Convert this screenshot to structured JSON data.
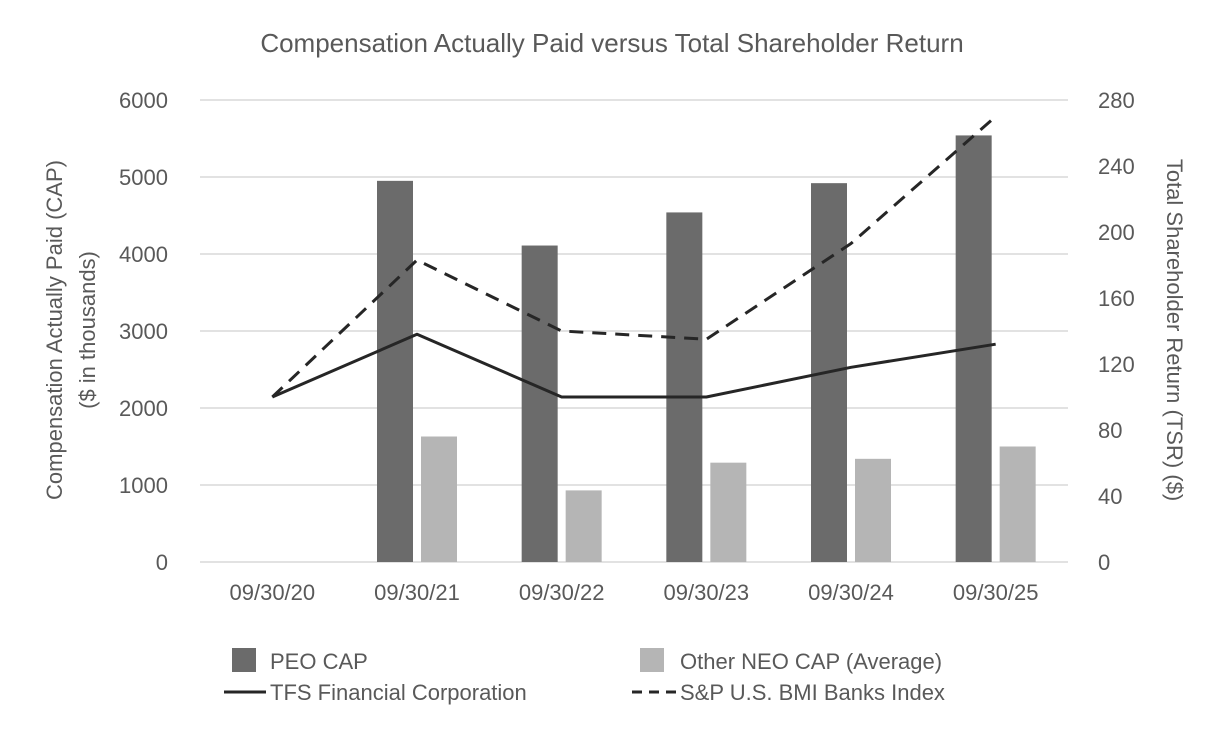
{
  "chart_data": {
    "type": "bar",
    "title": "Compensation Actually Paid versus Total Shareholder Return",
    "ylabel_left": [
      "Compensation Actually Paid (CAP)",
      "($ in thousands)"
    ],
    "ylabel_right": "Total Shareholder Return (TSR) ($)",
    "categories": [
      "09/30/20",
      "09/30/21",
      "09/30/22",
      "09/30/23",
      "09/30/24",
      "09/30/25"
    ],
    "ylim_left": [
      0,
      6000
    ],
    "yticks_left": [
      "0",
      "1000",
      "2000",
      "3000",
      "4000",
      "5000",
      "6000"
    ],
    "ylim_right": [
      0,
      280
    ],
    "yticks_right": [
      "0",
      "40",
      "80",
      "120",
      "160",
      "200",
      "240",
      "280"
    ],
    "grid": true,
    "legend_position": "bottom",
    "bar_series": [
      {
        "name": "PEO CAP",
        "axis": "left",
        "color": "#6b6b6b",
        "values": [
          null,
          4950,
          4110,
          4540,
          4920,
          5540
        ]
      },
      {
        "name": "Other NEO CAP (Average)",
        "axis": "left",
        "color": "#b5b5b5",
        "values": [
          null,
          1630,
          930,
          1290,
          1340,
          1500
        ]
      }
    ],
    "line_series": [
      {
        "name": "TFS Financial Corporation",
        "axis": "right",
        "style": "solid",
        "color": "#262626",
        "values": [
          100,
          138,
          100,
          100,
          118,
          132
        ]
      },
      {
        "name": "S&P U.S. BMI Banks Index",
        "axis": "right",
        "style": "dashed",
        "color": "#262626",
        "values": [
          100,
          183,
          140,
          135,
          193,
          270
        ]
      }
    ]
  }
}
